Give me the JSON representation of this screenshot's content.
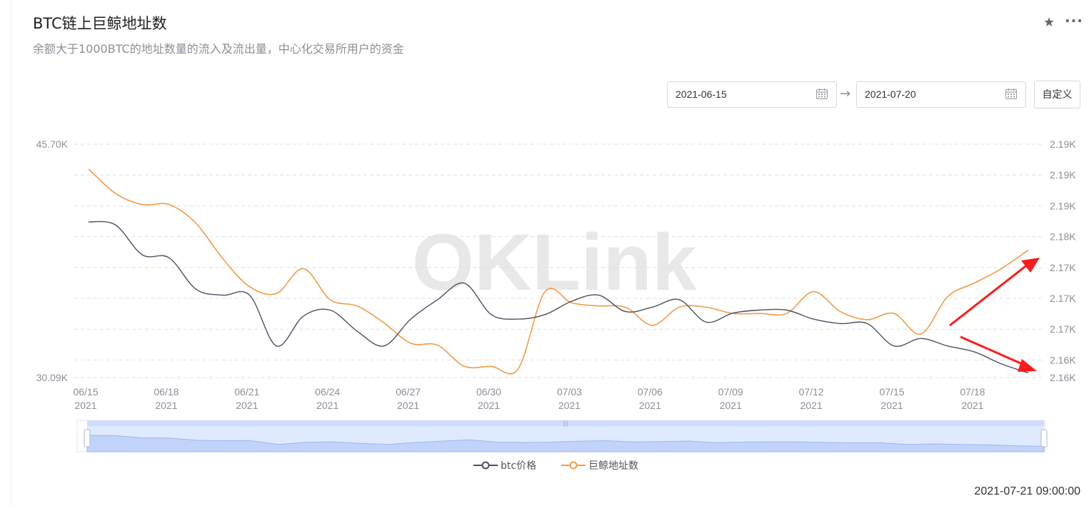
{
  "header": {
    "title": "BTC链上巨鲸地址数",
    "subtitle": "余额大于1000BTC的地址数量的流入及流出量，中心化交易所用户的资金",
    "star_icon": "star-icon",
    "more_icon": "more-icon"
  },
  "date_range": {
    "start": "2021-06-15",
    "end": "2021-07-20",
    "separator_icon": "arrow-right-icon",
    "calendar_icon": "calendar-icon",
    "custom_label": "自定义"
  },
  "timestamp": "2021-07-21 09:00:00",
  "watermark": "OKLink",
  "colors": {
    "btc": "#4b5060",
    "whale": "#f29b45",
    "annotation": "#ff1a1a",
    "grid": "#dcdfe6",
    "zoom_fill": "#dbe6ff"
  },
  "chart_data": {
    "type": "line",
    "x": [
      "06/15",
      "06/16",
      "06/17",
      "06/18",
      "06/19",
      "06/20",
      "06/21",
      "06/22",
      "06/23",
      "06/24",
      "06/25",
      "06/26",
      "06/27",
      "06/28",
      "06/29",
      "06/30",
      "07/01",
      "07/02",
      "07/03",
      "07/04",
      "07/05",
      "07/06",
      "07/07",
      "07/08",
      "07/09",
      "07/10",
      "07/11",
      "07/12",
      "07/13",
      "07/14",
      "07/15",
      "07/16",
      "07/17",
      "07/18",
      "07/19",
      "07/20"
    ],
    "x_tick_labels": [
      {
        "date": "06/15",
        "year": "2021"
      },
      {
        "date": "06/18",
        "year": "2021"
      },
      {
        "date": "06/21",
        "year": "2021"
      },
      {
        "date": "06/24",
        "year": "2021"
      },
      {
        "date": "06/27",
        "year": "2021"
      },
      {
        "date": "06/30",
        "year": "2021"
      },
      {
        "date": "07/03",
        "year": "2021"
      },
      {
        "date": "07/06",
        "year": "2021"
      },
      {
        "date": "07/09",
        "year": "2021"
      },
      {
        "date": "07/12",
        "year": "2021"
      },
      {
        "date": "07/15",
        "year": "2021"
      },
      {
        "date": "07/18",
        "year": "2021"
      }
    ],
    "y_left": {
      "min": 30.09,
      "max": 45.7,
      "unit": "K",
      "tick_labels": [
        "45.70K",
        "30.09K"
      ]
    },
    "y_right": {
      "min": 2158,
      "max": 2195.5,
      "tick_labels": [
        "2.19K",
        "2.19K",
        "2.19K",
        "2.18K",
        "2.17K",
        "2.17K",
        "2.17K",
        "2.16K",
        "2.16K"
      ]
    },
    "series": [
      {
        "name": "btc价格",
        "axis": "left",
        "values": [
          40.5,
          40.3,
          38.3,
          38.1,
          36.0,
          35.6,
          35.6,
          32.2,
          34.2,
          34.6,
          33.2,
          32.2,
          34.0,
          35.3,
          36.4,
          34.3,
          34.0,
          34.3,
          35.2,
          35.6,
          34.5,
          34.8,
          35.3,
          33.8,
          34.4,
          34.6,
          34.6,
          34.0,
          33.7,
          33.7,
          32.2,
          32.7,
          32.2,
          31.8,
          31.0,
          30.4
        ]
      },
      {
        "name": "巨鲸地址数",
        "axis": "right",
        "values": [
          2191.5,
          2187.6,
          2185.8,
          2185.8,
          2182.8,
          2177.1,
          2172.6,
          2171.5,
          2175.5,
          2170.5,
          2169.5,
          2166.8,
          2163.5,
          2163.2,
          2159.8,
          2159.8,
          2159.4,
          2171.8,
          2170.0,
          2169.5,
          2169.3,
          2166.4,
          2169.3,
          2169.3,
          2168.3,
          2168.3,
          2168.3,
          2171.8,
          2168.6,
          2167.3,
          2168.3,
          2165.0,
          2171.0,
          2173.2,
          2175.5,
          2178.5
        ]
      }
    ],
    "annotations": [
      {
        "type": "arrow",
        "direction": "up",
        "color": "#ff1a1a"
      },
      {
        "type": "arrow",
        "direction": "down",
        "color": "#ff1a1a"
      }
    ],
    "grid": true,
    "legend_position": "bottom-center",
    "data_zoom": true
  }
}
